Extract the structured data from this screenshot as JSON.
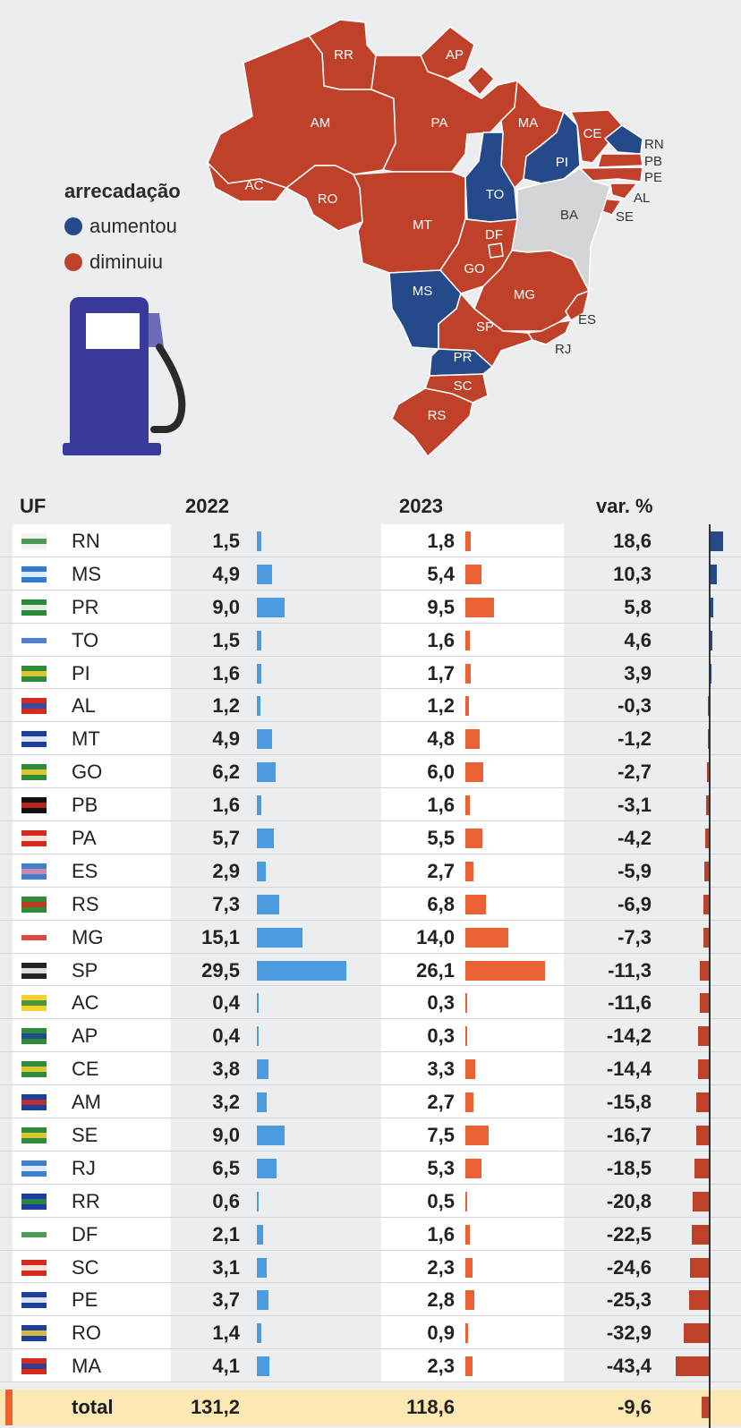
{
  "legend": {
    "title": "arrecadação",
    "items": [
      {
        "label": "aumentou",
        "color": "#254a8a"
      },
      {
        "label": "diminuiu",
        "color": "#c0412a"
      }
    ]
  },
  "map": {
    "labels": [
      "RR",
      "AP",
      "AM",
      "PA",
      "MA",
      "CE",
      "RN",
      "PB",
      "PE",
      "AL",
      "SE",
      "AC",
      "RO",
      "TO",
      "PI",
      "BA",
      "MT",
      "DF",
      "GO",
      "MG",
      "MS",
      "ES",
      "SP",
      "RJ",
      "PR",
      "SC",
      "RS"
    ],
    "colors": {
      "increase": "#254a8a",
      "decrease": "#c0412a",
      "neutral": "#d3d6d9"
    }
  },
  "table": {
    "headers": {
      "uf": "UF",
      "y2022": "2022",
      "y2023": "2023",
      "var": "var. %"
    },
    "total": {
      "label": "total",
      "v2022": "131,2",
      "v2023": "118,6",
      "var": "-9,6"
    }
  },
  "chart_data": {
    "type": "table",
    "columns": [
      "UF",
      "2022",
      "2023",
      "var. %"
    ],
    "rows": [
      {
        "uf": "RN",
        "v2022": "1,5",
        "v2023": "1,8",
        "var": "18,6",
        "n2022": 1.5,
        "n2023": 1.8,
        "nvar": 18.6
      },
      {
        "uf": "MS",
        "v2022": "4,9",
        "v2023": "5,4",
        "var": "10,3",
        "n2022": 4.9,
        "n2023": 5.4,
        "nvar": 10.3
      },
      {
        "uf": "PR",
        "v2022": "9,0",
        "v2023": "9,5",
        "var": "5,8",
        "n2022": 9.0,
        "n2023": 9.5,
        "nvar": 5.8
      },
      {
        "uf": "TO",
        "v2022": "1,5",
        "v2023": "1,6",
        "var": "4,6",
        "n2022": 1.5,
        "n2023": 1.6,
        "nvar": 4.6
      },
      {
        "uf": "PI",
        "v2022": "1,6",
        "v2023": "1,7",
        "var": "3,9",
        "n2022": 1.6,
        "n2023": 1.7,
        "nvar": 3.9
      },
      {
        "uf": "AL",
        "v2022": "1,2",
        "v2023": "1,2",
        "var": "-0,3",
        "n2022": 1.2,
        "n2023": 1.2,
        "nvar": -0.3
      },
      {
        "uf": "MT",
        "v2022": "4,9",
        "v2023": "4,8",
        "var": "-1,2",
        "n2022": 4.9,
        "n2023": 4.8,
        "nvar": -1.2
      },
      {
        "uf": "GO",
        "v2022": "6,2",
        "v2023": "6,0",
        "var": "-2,7",
        "n2022": 6.2,
        "n2023": 6.0,
        "nvar": -2.7
      },
      {
        "uf": "PB",
        "v2022": "1,6",
        "v2023": "1,6",
        "var": "-3,1",
        "n2022": 1.6,
        "n2023": 1.6,
        "nvar": -3.1
      },
      {
        "uf": "PA",
        "v2022": "5,7",
        "v2023": "5,5",
        "var": "-4,2",
        "n2022": 5.7,
        "n2023": 5.5,
        "nvar": -4.2
      },
      {
        "uf": "ES",
        "v2022": "2,9",
        "v2023": "2,7",
        "var": "-5,9",
        "n2022": 2.9,
        "n2023": 2.7,
        "nvar": -5.9
      },
      {
        "uf": "RS",
        "v2022": "7,3",
        "v2023": "6,8",
        "var": "-6,9",
        "n2022": 7.3,
        "n2023": 6.8,
        "nvar": -6.9
      },
      {
        "uf": "MG",
        "v2022": "15,1",
        "v2023": "14,0",
        "var": "-7,3",
        "n2022": 15.1,
        "n2023": 14.0,
        "nvar": -7.3
      },
      {
        "uf": "SP",
        "v2022": "29,5",
        "v2023": "26,1",
        "var": "-11,3",
        "n2022": 29.5,
        "n2023": 26.1,
        "nvar": -11.3
      },
      {
        "uf": "AC",
        "v2022": "0,4",
        "v2023": "0,3",
        "var": "-11,6",
        "n2022": 0.4,
        "n2023": 0.3,
        "nvar": -11.6
      },
      {
        "uf": "AP",
        "v2022": "0,4",
        "v2023": "0,3",
        "var": "-14,2",
        "n2022": 0.4,
        "n2023": 0.3,
        "nvar": -14.2
      },
      {
        "uf": "CE",
        "v2022": "3,8",
        "v2023": "3,3",
        "var": "-14,4",
        "n2022": 3.8,
        "n2023": 3.3,
        "nvar": -14.4
      },
      {
        "uf": "AM",
        "v2022": "3,2",
        "v2023": "2,7",
        "var": "-15,8",
        "n2022": 3.2,
        "n2023": 2.7,
        "nvar": -15.8
      },
      {
        "uf": "SE",
        "v2022": "9,0",
        "v2023": "7,5",
        "var": "-16,7",
        "n2022": 9.0,
        "n2023": 7.5,
        "nvar": -16.7
      },
      {
        "uf": "RJ",
        "v2022": "6,5",
        "v2023": "5,3",
        "var": "-18,5",
        "n2022": 6.5,
        "n2023": 5.3,
        "nvar": -18.5
      },
      {
        "uf": "RR",
        "v2022": "0,6",
        "v2023": "0,5",
        "var": "-20,8",
        "n2022": 0.6,
        "n2023": 0.5,
        "nvar": -20.8
      },
      {
        "uf": "DF",
        "v2022": "2,1",
        "v2023": "1,6",
        "var": "-22,5",
        "n2022": 2.1,
        "n2023": 1.6,
        "nvar": -22.5
      },
      {
        "uf": "SC",
        "v2022": "3,1",
        "v2023": "2,3",
        "var": "-24,6",
        "n2022": 3.1,
        "n2023": 2.3,
        "nvar": -24.6
      },
      {
        "uf": "PE",
        "v2022": "3,7",
        "v2023": "2,8",
        "var": "-25,3",
        "n2022": 3.7,
        "n2023": 2.8,
        "nvar": -25.3
      },
      {
        "uf": "RO",
        "v2022": "1,4",
        "v2023": "0,9",
        "var": "-32,9",
        "n2022": 1.4,
        "n2023": 0.9,
        "nvar": -32.9
      },
      {
        "uf": "MA",
        "v2022": "4,1",
        "v2023": "2,3",
        "var": "-43,4",
        "n2022": 4.1,
        "n2023": 2.3,
        "nvar": -43.4
      }
    ],
    "total": {
      "n2022": 131.2,
      "n2023": 118.6,
      "nvar": -9.6
    },
    "bar_colors": {
      "y2022": "#4a9be0",
      "y2023": "#ea6233",
      "var_pos": "#254a8a",
      "var_neg": "#c0412a"
    }
  }
}
